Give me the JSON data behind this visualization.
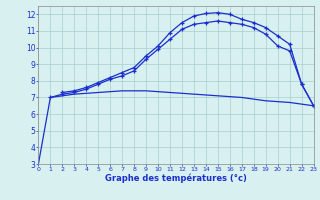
{
  "line1_x": [
    0,
    1,
    2,
    3,
    4,
    5,
    6,
    7,
    8,
    9,
    10,
    11,
    12,
    13,
    14,
    15,
    16,
    17,
    18,
    19,
    20,
    21,
    22,
    23
  ],
  "line1_y": [
    3.0,
    7.0,
    7.1,
    7.2,
    7.25,
    7.3,
    7.35,
    7.4,
    7.4,
    7.4,
    7.35,
    7.3,
    7.25,
    7.2,
    7.15,
    7.1,
    7.05,
    7.0,
    6.9,
    6.8,
    6.75,
    6.7,
    6.6,
    6.5
  ],
  "line2_x": [
    1,
    2,
    3,
    4,
    5,
    6,
    7,
    8,
    9,
    10,
    11,
    12,
    13,
    14,
    15,
    16,
    17,
    18,
    19,
    20,
    21,
    22,
    23
  ],
  "line2_y": [
    7.0,
    7.2,
    7.3,
    7.5,
    7.8,
    8.1,
    8.3,
    8.6,
    9.3,
    9.9,
    10.5,
    11.1,
    11.4,
    11.5,
    11.6,
    11.5,
    11.4,
    11.2,
    10.8,
    10.1,
    9.8,
    7.8,
    6.5
  ],
  "line3_x": [
    2,
    3,
    4,
    5,
    6,
    7,
    8,
    9,
    10,
    11,
    12,
    13,
    14,
    15,
    16,
    17,
    18,
    19,
    20,
    21,
    22,
    23
  ],
  "line3_y": [
    7.3,
    7.4,
    7.6,
    7.9,
    8.2,
    8.5,
    8.8,
    9.5,
    10.1,
    10.9,
    11.5,
    11.9,
    12.05,
    12.1,
    12.0,
    11.7,
    11.5,
    11.2,
    10.7,
    10.2,
    7.8,
    6.5
  ],
  "line_color": "#1a2fcc",
  "bg_color": "#d8f0f0",
  "grid_color": "#a8cece",
  "xlabel": "Graphe des températures (°c)",
  "xlim": [
    0,
    23
  ],
  "ylim": [
    3,
    12.5
  ],
  "yticks": [
    3,
    4,
    5,
    6,
    7,
    8,
    9,
    10,
    11,
    12
  ],
  "xticks": [
    0,
    1,
    2,
    3,
    4,
    5,
    6,
    7,
    8,
    9,
    10,
    11,
    12,
    13,
    14,
    15,
    16,
    17,
    18,
    19,
    20,
    21,
    22,
    23
  ]
}
